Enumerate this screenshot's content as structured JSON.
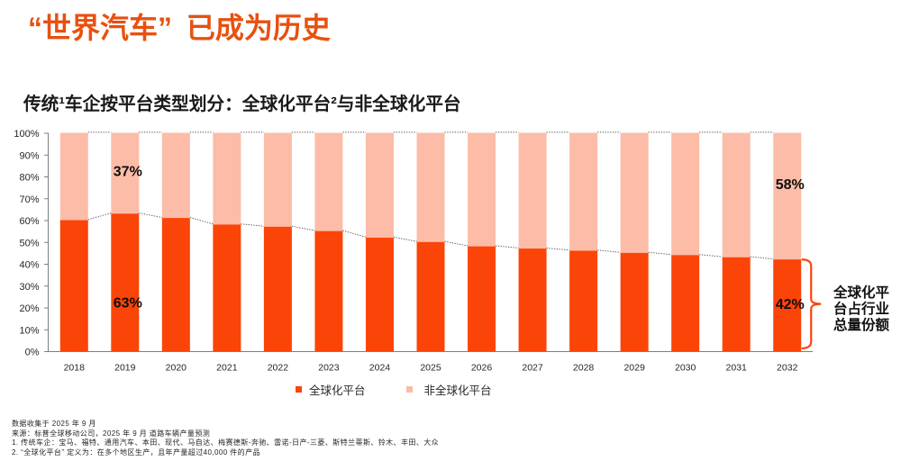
{
  "slide": {
    "title": "“世界汽车” 已成为历史",
    "title_color": "#E8500F"
  },
  "chart": {
    "title": "传统¹车企按平台类型划分：全球化平台²与非全球化平台"
  },
  "chart_data": {
    "type": "bar",
    "stacked": true,
    "unit": "%",
    "categories": [
      "2018",
      "2019",
      "2020",
      "2021",
      "2022",
      "2023",
      "2024",
      "2025",
      "2026",
      "2027",
      "2028",
      "2029",
      "2030",
      "2031",
      "2032"
    ],
    "series": [
      {
        "name": "全球化平台",
        "color": "#FB4408",
        "values": [
          60,
          63,
          61,
          58,
          57,
          55,
          52,
          50,
          48,
          47,
          46,
          45,
          44,
          43,
          42
        ]
      },
      {
        "name": "非全球化平台",
        "color": "#FCBCA8",
        "values": [
          40,
          37,
          39,
          42,
          43,
          45,
          48,
          50,
          52,
          53,
          54,
          55,
          56,
          57,
          58
        ]
      }
    ],
    "ylim": [
      0,
      100
    ],
    "ytick_step": 10,
    "ytick_suffix": "%",
    "grid": "dotted-top-line-and-segment-connectors",
    "legend_position": "bottom",
    "value_callouts": [
      {
        "text": "37%",
        "category": "2019",
        "y_pct": 82.5
      },
      {
        "text": "63%",
        "category": "2019",
        "y_pct": 22.4
      },
      {
        "text": "58%",
        "category": "2032",
        "y_pct": 76.6
      },
      {
        "text": "42%",
        "category": "2032",
        "y_pct": 21.8
      }
    ],
    "right_annotation": {
      "text": "全球化平台占行业总量份额",
      "lines": [
        "全球化平",
        "台占行业",
        "总量份额"
      ],
      "brace_color": "#FB4408"
    }
  },
  "legend": [
    {
      "label": "全球化平台",
      "color": "#FB4408"
    },
    {
      "label": "非全球化平台",
      "color": "#FCBCA8"
    }
  ],
  "footnotes": [
    "数据收集于 2025 年 9 月",
    "来源：标普全球移动公司，2025 年 9 月 道路车辆产量预测",
    "1. 传统车企：宝马、福特、通用汽车、本田、现代、马自达、梅赛德斯-奔驰、雷诺-日产-三菱、斯特兰蒂斯、铃木、丰田、大众",
    "2. “全球化平台” 定义为：在多个地区生产，且年产量超过40,000 件的产品"
  ]
}
